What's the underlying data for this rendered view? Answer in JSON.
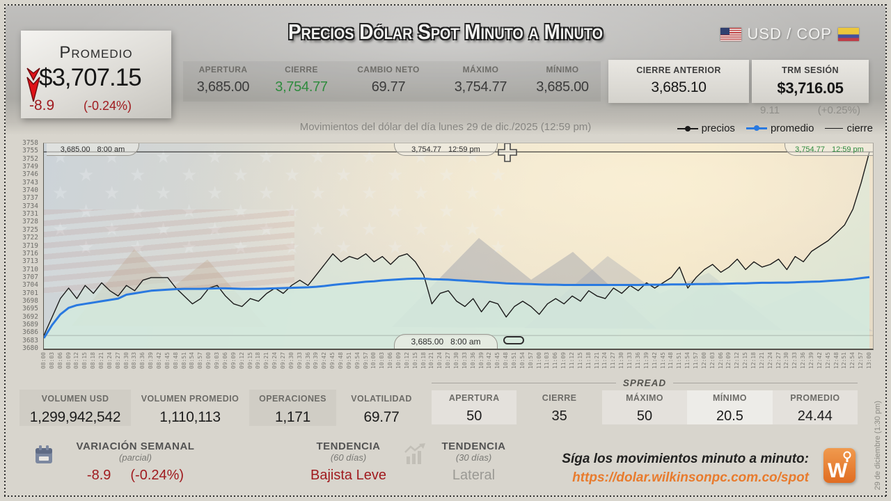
{
  "colors": {
    "down_red": "#a01b1f",
    "arrow_red": "#e01218",
    "up_green": "#2f8b3e",
    "promedio_blue": "#2979e0",
    "line_black": "#1a1a1a",
    "orange": "#e87b2d",
    "area_mint": "#d5eadd"
  },
  "header": {
    "title": "Precios Dólar Spot Minuto a Minuto",
    "currency_pair": "USD / COP",
    "promedio": {
      "label": "Promedio",
      "value": "$3,707.15",
      "change": "-8.9",
      "change_pct": "(-0.24%)"
    },
    "stats": [
      {
        "label": "APERTURA",
        "value": "3,685.00"
      },
      {
        "label": "CIERRE",
        "value": "3,754.77"
      },
      {
        "label": "CAMBIO NETO",
        "value": "69.77"
      },
      {
        "label": "MÁXIMO",
        "value": "3,754.77"
      },
      {
        "label": "MÍNIMO",
        "value": "3,685.00"
      }
    ],
    "cierre_anterior": {
      "label": "CIERRE ANTERIOR",
      "value": "3,685.10"
    },
    "trm": {
      "label": "TRM SESIÓN",
      "value": "$3,716.05",
      "change": "9.11",
      "change_pct": "(+0.25%)"
    },
    "subtitle": "Movimientos del dólar del día lunes 29 de dic./2025 (12:59 pm)"
  },
  "legend": {
    "items": [
      {
        "label": "precios",
        "color": "#1a1a1a",
        "dot": true
      },
      {
        "label": "promedio",
        "color": "#2979e0",
        "dot": true
      },
      {
        "label": "cierre",
        "color": "#1a1a1a",
        "dot": false
      }
    ]
  },
  "chart_data": {
    "type": "line",
    "title": "Movimientos del dólar del día lunes 29 de dic./2025 (12:59 pm)",
    "grid": false,
    "legend_position": "top-right",
    "ylim": [
      3680,
      3758
    ],
    "y_ticks": [
      3758,
      3755,
      3752,
      3749,
      3746,
      3743,
      3740,
      3737,
      3734,
      3731,
      3728,
      3725,
      3722,
      3719,
      3716,
      3713,
      3710,
      3707,
      3704,
      3701,
      3698,
      3695,
      3692,
      3689,
      3686,
      3683,
      3680
    ],
    "x": [
      "08:00",
      "08:03",
      "08:06",
      "08:09",
      "08:12",
      "08:15",
      "08:18",
      "08:21",
      "08:24",
      "08:27",
      "08:30",
      "08:33",
      "08:36",
      "08:39",
      "08:42",
      "08:45",
      "08:48",
      "08:51",
      "08:54",
      "08:57",
      "09:00",
      "09:03",
      "09:06",
      "09:09",
      "09:12",
      "09:15",
      "09:18",
      "09:21",
      "09:24",
      "09:27",
      "09:30",
      "09:33",
      "09:36",
      "09:39",
      "09:42",
      "09:45",
      "09:48",
      "09:51",
      "09:54",
      "09:57",
      "10:00",
      "10:03",
      "10:06",
      "10:09",
      "10:12",
      "10:15",
      "10:18",
      "10:21",
      "10:24",
      "10:27",
      "10:30",
      "10:33",
      "10:36",
      "10:39",
      "10:42",
      "10:45",
      "10:48",
      "10:51",
      "10:54",
      "10:57",
      "11:00",
      "11:03",
      "11:06",
      "11:09",
      "11:12",
      "11:15",
      "11:18",
      "11:21",
      "11:24",
      "11:27",
      "11:30",
      "11:33",
      "11:36",
      "11:39",
      "11:42",
      "11:45",
      "11:48",
      "11:51",
      "11:54",
      "11:57",
      "12:00",
      "12:03",
      "12:06",
      "12:09",
      "12:12",
      "12:15",
      "12:18",
      "12:21",
      "12:24",
      "12:27",
      "12:30",
      "12:33",
      "12:36",
      "12:39",
      "12:42",
      "12:45",
      "12:48",
      "12:51",
      "12:54",
      "12:57",
      "13:00"
    ],
    "series": [
      {
        "name": "precios",
        "color": "#1a1a1a",
        "width": 1.4,
        "area_fill": "rgba(211,233,221,0.5)",
        "values": [
          3685,
          3692,
          3699,
          3703,
          3699,
          3704,
          3701,
          3705,
          3702,
          3700,
          3704,
          3702,
          3706,
          3707,
          3707,
          3707,
          3703,
          3700,
          3697,
          3699,
          3703,
          3704,
          3700,
          3697,
          3696,
          3699,
          3698,
          3701,
          3703,
          3701,
          3704,
          3706,
          3704,
          3708,
          3712,
          3716,
          3713,
          3715,
          3714,
          3716,
          3713,
          3715,
          3712,
          3715,
          3716,
          3713,
          3708,
          3697,
          3701,
          3702,
          3698,
          3696,
          3699,
          3694,
          3698,
          3697,
          3692,
          3696,
          3698,
          3696,
          3693,
          3697,
          3699,
          3697,
          3700,
          3698,
          3702,
          3700,
          3699,
          3703,
          3701,
          3704,
          3702,
          3705,
          3703,
          3705,
          3707,
          3711,
          3703,
          3707,
          3710,
          3712,
          3709,
          3711,
          3714,
          3710,
          3713,
          3711,
          3712,
          3714,
          3710,
          3715,
          3713,
          3717,
          3719,
          3721,
          3724,
          3727,
          3733,
          3743,
          3754.77
        ]
      },
      {
        "name": "promedio",
        "color": "#2979e0",
        "width": 3,
        "area_fill": "rgba(211,233,221,0.8)",
        "values": [
          3684,
          3689,
          3693,
          3695.5,
          3696.5,
          3697,
          3697.5,
          3698,
          3698.5,
          3699,
          3700.5,
          3701,
          3701.5,
          3702,
          3702.2,
          3702.4,
          3702.6,
          3702.7,
          3702.7,
          3702.7,
          3702.8,
          3702.9,
          3702.9,
          3702.8,
          3702.7,
          3702.7,
          3702.7,
          3702.8,
          3702.9,
          3703,
          3703.1,
          3703.2,
          3703.3,
          3703.5,
          3703.8,
          3704.2,
          3704.5,
          3704.8,
          3705.1,
          3705.4,
          3705.6,
          3705.9,
          3706.1,
          3706.3,
          3706.5,
          3706.6,
          3706.6,
          3706.4,
          3706.3,
          3706.2,
          3706,
          3705.8,
          3705.6,
          3705.4,
          3705.2,
          3705,
          3704.8,
          3704.7,
          3704.6,
          3704.5,
          3704.4,
          3704.3,
          3704.3,
          3704.2,
          3704.2,
          3704.2,
          3704.2,
          3704.2,
          3704.2,
          3704.2,
          3704.2,
          3704.2,
          3704.2,
          3704.3,
          3704.3,
          3704.3,
          3704.4,
          3704.4,
          3704.4,
          3704.5,
          3704.5,
          3704.6,
          3704.6,
          3704.7,
          3704.8,
          3704.8,
          3704.9,
          3705,
          3705,
          3705.1,
          3705.1,
          3705.2,
          3705.3,
          3705.4,
          3705.5,
          3705.7,
          3705.9,
          3706.1,
          3706.4,
          3706.8,
          3707.15
        ]
      },
      {
        "name": "cierre",
        "type": "hline",
        "color": "#1c1c1c",
        "width": 1,
        "value": 3754.77
      }
    ],
    "ref_lines": [
      {
        "value": 3685,
        "color": "rgba(90,90,90,0.35)",
        "width": 1
      }
    ],
    "annotations": {
      "top_left": {
        "value": "3,685.00",
        "time": "8:00 am"
      },
      "top_center": {
        "value": "3,754.77",
        "time": "12:59 pm"
      },
      "top_right": {
        "value": "3,754.77",
        "time": "12:59 pm"
      },
      "bottom": {
        "value": "3,685.00",
        "time": "8:00 am"
      }
    }
  },
  "stats": {
    "items": [
      {
        "label": "VOLUMEN USD",
        "value": "1,299,942,542"
      },
      {
        "label": "VOLUMEN PROMEDIO",
        "value": "1,110,113"
      },
      {
        "label": "OPERACIONES",
        "value": "1,171"
      },
      {
        "label": "VOLATILIDAD",
        "value": "69.77"
      }
    ]
  },
  "spread": {
    "title": "SPREAD",
    "items": [
      {
        "label": "APERTURA",
        "value": "50"
      },
      {
        "label": "CIERRE",
        "value": "35"
      },
      {
        "label": "MÁXIMO",
        "value": "50"
      },
      {
        "label": "MÍNIMO",
        "value": "20.5"
      },
      {
        "label": "PROMEDIO",
        "value": "24.44"
      }
    ]
  },
  "footer": {
    "variacion": {
      "label": "VARIACIÓN SEMANAL",
      "sublabel": "(parcial)",
      "change": "-8.9",
      "change_pct": "(-0.24%)"
    },
    "tendencia_60": {
      "label": "TENDENCIA",
      "sublabel": "(60 días)",
      "value": "Bajista Leve"
    },
    "tendencia_30": {
      "label": "TENDENCIA",
      "sublabel": "(30 días)",
      "value": "Lateral"
    },
    "follow": {
      "text": "Síga los movimientos minuto a minuto:",
      "url": "https://dolar.wilkinsonpc.com.co/spot"
    },
    "logo_letter": "W",
    "side_date": "29 de diciembre (1:30 pm)"
  }
}
